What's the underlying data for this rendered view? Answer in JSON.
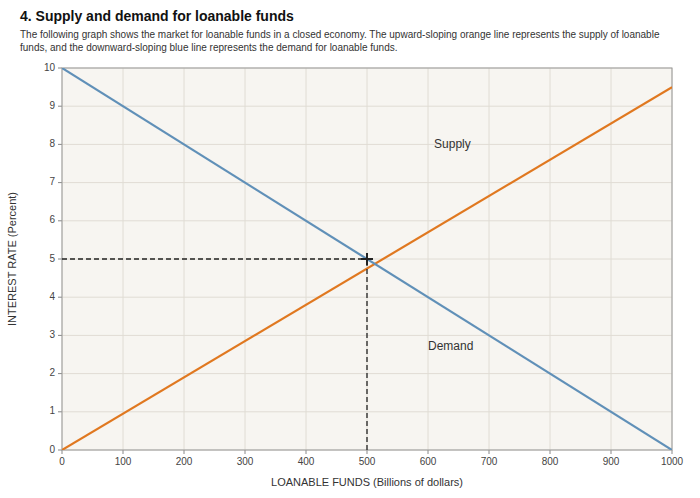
{
  "chart_data": {
    "type": "line",
    "title": "4. Supply and demand for loanable funds",
    "subtitle": [
      "The following graph shows the market for ​loanable funds​ in a closed economy. The upward-sloping orange line represents the supply of loanable",
      "funds, and the downward-sloping blue line represents the demand for loanable funds."
    ],
    "x_label": "LOANABLE FUNDS (Billions of dollars)",
    "y_label": "INTEREST RATE (Percent)",
    "xlim": [
      0,
      1000
    ],
    "ylim": [
      0,
      10
    ],
    "xticks": [
      0,
      100,
      200,
      300,
      400,
      500,
      600,
      700,
      800,
      900,
      1000
    ],
    "yticks": [
      0,
      1,
      2,
      3,
      4,
      5,
      6,
      7,
      8,
      9,
      10
    ],
    "grid": true,
    "series": [
      {
        "x": [
          0,
          1000
        ],
        "values": [
          0,
          9.5
        ],
        "color": "#E07820"
      },
      {
        "x": [
          0,
          1000
        ],
        "values": [
          10,
          0
        ],
        "color": "#6090B8"
      },
      {
        "type": "scatter",
        "marker": "plus",
        "line_style": "dashed",
        "x": [
          500
        ],
        "values": [
          5
        ],
        "color": "#222222"
      }
    ],
    "annotations": [
      {
        "text": "Supply",
        "x": 610,
        "y": 8.0
      },
      {
        "text": "Demand",
        "x": 600,
        "y": 2.7
      }
    ]
  }
}
